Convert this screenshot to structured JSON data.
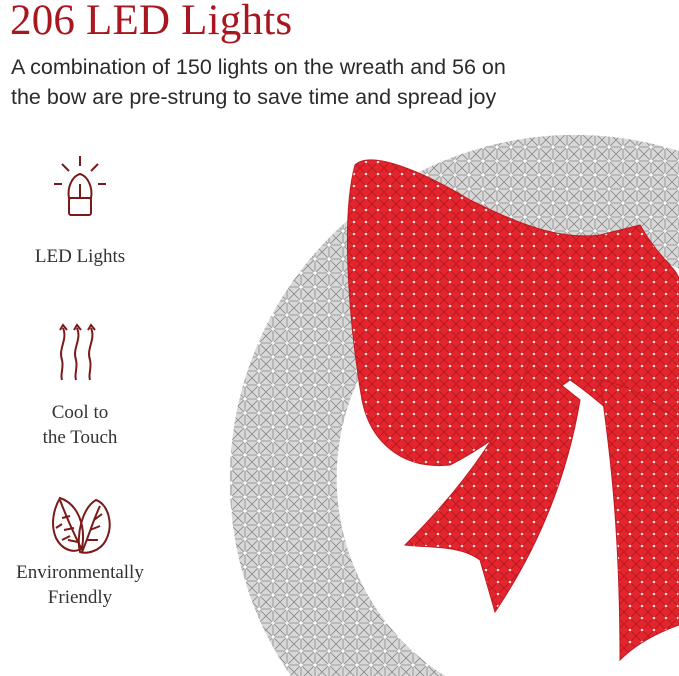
{
  "header": {
    "title": "206 LED Lights",
    "subtitle_line1": "A combination of 150 lights on the wreath and 56 on",
    "subtitle_line2": "the bow are pre-strung to save time and spread joy"
  },
  "features": [
    {
      "icon": "led-bulb-icon",
      "label": "LED Lights"
    },
    {
      "icon": "heat-waves-icon",
      "label_line1": "Cool to",
      "label_line2": "the Touch"
    },
    {
      "icon": "leaves-icon",
      "label_line1": "Environmentally",
      "label_line2": "Friendly"
    }
  ],
  "colors": {
    "accent": "#a8161f",
    "icon": "#7a1a1a",
    "bow": "#e0232b",
    "wreath": "#c9c9c9"
  }
}
